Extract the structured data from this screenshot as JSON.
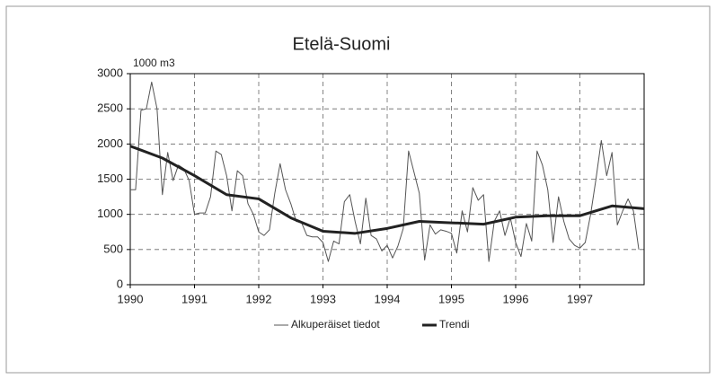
{
  "chart_data": {
    "type": "line",
    "title": "Etelä-Suomi",
    "y_label": "1000 m3",
    "x": [
      1990,
      1990.083,
      1990.167,
      1990.25,
      1990.333,
      1990.417,
      1990.5,
      1990.583,
      1990.667,
      1990.75,
      1990.833,
      1990.917,
      1991,
      1991.083,
      1991.167,
      1991.25,
      1991.333,
      1991.417,
      1991.5,
      1991.583,
      1991.667,
      1991.75,
      1991.833,
      1991.917,
      1992,
      1992.083,
      1992.167,
      1992.25,
      1992.333,
      1992.417,
      1992.5,
      1992.583,
      1992.667,
      1992.75,
      1992.833,
      1992.917,
      1993,
      1993.083,
      1993.167,
      1993.25,
      1993.333,
      1993.417,
      1993.5,
      1993.583,
      1993.667,
      1993.75,
      1993.833,
      1993.917,
      1994,
      1994.083,
      1994.167,
      1994.25,
      1994.333,
      1994.417,
      1994.5,
      1994.583,
      1994.667,
      1994.75,
      1994.833,
      1994.917,
      1995,
      1995.083,
      1995.167,
      1995.25,
      1995.333,
      1995.417,
      1995.5,
      1995.583,
      1995.667,
      1995.75,
      1995.833,
      1995.917,
      1996,
      1996.083,
      1996.167,
      1996.25,
      1996.333,
      1996.417,
      1996.5,
      1996.583,
      1996.667,
      1996.75,
      1996.833,
      1996.917,
      1997,
      1997.083,
      1997.167,
      1997.25,
      1997.333,
      1997.417,
      1997.5,
      1997.583,
      1997.667,
      1997.75,
      1997.833,
      1997.917
    ],
    "series": [
      {
        "name": "Alkuperäiset tiedot",
        "color": "#555555",
        "width": 1,
        "values": [
          1350,
          1350,
          2480,
          2500,
          2880,
          2500,
          1280,
          1880,
          1480,
          1700,
          1650,
          1480,
          1000,
          1020,
          1020,
          1250,
          1900,
          1850,
          1550,
          1050,
          1620,
          1550,
          1150,
          1000,
          750,
          700,
          780,
          1300,
          1720,
          1350,
          1150,
          900,
          880,
          700,
          680,
          680,
          600,
          330,
          620,
          580,
          1180,
          1280,
          900,
          580,
          1230,
          700,
          650,
          480,
          560,
          380,
          550,
          800,
          1900,
          1600,
          1300,
          350,
          850,
          720,
          780,
          760,
          730,
          450,
          1050,
          750,
          1380,
          1200,
          1280,
          330,
          900,
          1050,
          700,
          950,
          600,
          400,
          870,
          620,
          1900,
          1700,
          1350,
          600,
          1250,
          900,
          650,
          560,
          520,
          600,
          1000,
          1500,
          2050,
          1550,
          1880,
          850,
          1050,
          1220,
          1050,
          500
        ]
      },
      {
        "name": "Trendi",
        "color": "#222222",
        "width": 3,
        "x": [
          1990,
          1990.5,
          1991,
          1991.5,
          1992,
          1992.5,
          1993,
          1993.5,
          1994,
          1994.5,
          1995,
          1995.5,
          1996,
          1996.5,
          1997,
          1997.5,
          1998
        ],
        "values": [
          1970,
          1800,
          1550,
          1280,
          1220,
          950,
          760,
          730,
          800,
          900,
          880,
          860,
          960,
          980,
          980,
          1120,
          1080
        ]
      }
    ],
    "xlim": [
      1990,
      1998
    ],
    "xticks": [
      1990,
      1991,
      1992,
      1993,
      1994,
      1995,
      1996,
      1997
    ],
    "ylim": [
      0,
      3000
    ],
    "yticks": [
      0,
      500,
      1000,
      1500,
      2000,
      2500,
      3000
    ],
    "grid": true
  }
}
